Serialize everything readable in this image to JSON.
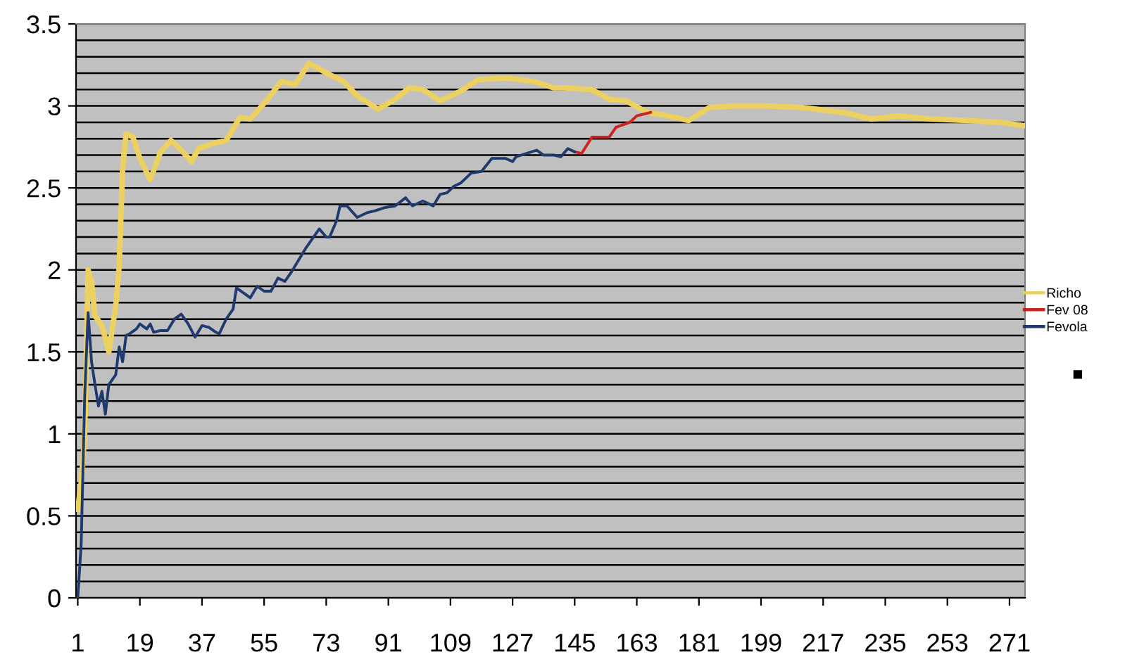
{
  "chart_data": {
    "type": "line",
    "xlim": [
      0.5,
      275.5
    ],
    "xticks": [
      1,
      19,
      37,
      55,
      73,
      91,
      109,
      127,
      145,
      163,
      181,
      199,
      217,
      235,
      253,
      271
    ],
    "ylim": [
      0,
      3.5
    ],
    "yticks": [
      0,
      {
        "value": 0.1,
        "label": null
      },
      {
        "value": 0.2,
        "label": null
      },
      {
        "value": 0.3,
        "label": null
      },
      {
        "value": 0.4,
        "label": null
      },
      0.5,
      {
        "value": 0.6,
        "label": null
      },
      {
        "value": 0.7,
        "label": null
      },
      {
        "value": 0.8,
        "label": null
      },
      {
        "value": 0.9,
        "label": null
      },
      1,
      {
        "value": 1.1,
        "label": null
      },
      {
        "value": 1.2,
        "label": null
      },
      {
        "value": 1.3,
        "label": null
      },
      {
        "value": 1.4,
        "label": null
      },
      1.5,
      {
        "value": 1.6,
        "label": null
      },
      {
        "value": 1.7,
        "label": null
      },
      {
        "value": 1.8,
        "label": null
      },
      {
        "value": 1.9,
        "label": null
      },
      2,
      {
        "value": 2.1,
        "label": null
      },
      {
        "value": 2.2,
        "label": null
      },
      {
        "value": 2.3,
        "label": null
      },
      {
        "value": 2.4,
        "label": null
      },
      2.5,
      {
        "value": 2.6,
        "label": null
      },
      {
        "value": 2.7,
        "label": null
      },
      {
        "value": 2.8,
        "label": null
      },
      {
        "value": 2.9,
        "label": null
      },
      3,
      {
        "value": 3.1,
        "label": null
      },
      {
        "value": 3.2,
        "label": null
      },
      {
        "value": 3.3,
        "label": null
      },
      {
        "value": 3.4,
        "label": null
      },
      3.5
    ],
    "grid": "y",
    "legend": "right",
    "marker": "none",
    "line_style": "solid",
    "series": [
      {
        "name": "Richo",
        "color": "#ecd060",
        "x": [
          1,
          2,
          3,
          4,
          5,
          6,
          8,
          10,
          12,
          13,
          14,
          15,
          17,
          19,
          22,
          25,
          28,
          31,
          34,
          36,
          40,
          44,
          48,
          51,
          56,
          60,
          64,
          68,
          74,
          78,
          82,
          88,
          93,
          97,
          101,
          106,
          112,
          117,
          125,
          133,
          139,
          142,
          150,
          155,
          160,
          166,
          172,
          178,
          184,
          191,
          201,
          211,
          223,
          231,
          239,
          248,
          260,
          268,
          275
        ],
        "values": [
          0.54,
          0.7,
          0.99,
          2.0,
          1.93,
          1.72,
          1.66,
          1.5,
          1.78,
          2.02,
          2.62,
          2.83,
          2.81,
          2.68,
          2.55,
          2.72,
          2.79,
          2.73,
          2.66,
          2.74,
          2.77,
          2.79,
          2.93,
          2.92,
          3.04,
          3.15,
          3.13,
          3.26,
          3.19,
          3.15,
          3.06,
          2.98,
          3.04,
          3.11,
          3.1,
          3.03,
          3.09,
          3.16,
          3.17,
          3.15,
          3.11,
          3.11,
          3.1,
          3.04,
          3.03,
          2.96,
          2.94,
          2.91,
          2.99,
          3.0,
          3.0,
          2.99,
          2.96,
          2.92,
          2.94,
          2.92,
          2.91,
          2.9,
          2.88
        ]
      },
      {
        "name": "Fev 08",
        "color": "#cc2222",
        "x": [
          145,
          147,
          150,
          153,
          155,
          157,
          161,
          163,
          167
        ],
        "values": [
          2.72,
          2.71,
          2.81,
          2.81,
          2.81,
          2.87,
          2.9,
          2.94,
          2.96
        ]
      },
      {
        "name": "Fevola",
        "color": "#1f3a6e",
        "x": [
          1,
          2,
          3,
          4,
          5,
          6,
          7,
          8,
          9,
          10,
          11,
          12,
          13,
          14,
          15,
          16,
          18,
          19,
          21,
          22,
          23,
          25,
          27,
          29,
          31,
          33,
          35,
          37,
          39,
          41,
          42,
          44,
          46,
          47,
          51,
          53,
          55,
          57,
          59,
          61,
          63,
          65,
          67,
          69,
          71,
          73,
          74,
          76,
          77,
          79,
          82,
          85,
          87,
          90,
          93,
          96,
          98,
          101,
          104,
          106,
          108,
          110,
          112,
          115,
          118,
          121,
          125,
          127,
          128,
          134,
          136,
          139,
          141,
          143,
          145
        ],
        "values": [
          0,
          0.33,
          1.22,
          1.74,
          1.44,
          1.3,
          1.17,
          1.26,
          1.12,
          1.3,
          1.33,
          1.36,
          1.53,
          1.44,
          1.6,
          1.61,
          1.64,
          1.67,
          1.64,
          1.67,
          1.62,
          1.63,
          1.63,
          1.7,
          1.73,
          1.67,
          1.59,
          1.66,
          1.65,
          1.62,
          1.61,
          1.7,
          1.76,
          1.89,
          1.83,
          1.9,
          1.87,
          1.87,
          1.95,
          1.93,
          1.99,
          2.06,
          2.13,
          2.19,
          2.25,
          2.2,
          2.2,
          2.3,
          2.39,
          2.39,
          2.32,
          2.35,
          2.36,
          2.38,
          2.39,
          2.44,
          2.39,
          2.42,
          2.39,
          2.46,
          2.47,
          2.51,
          2.53,
          2.59,
          2.6,
          2.68,
          2.68,
          2.66,
          2.69,
          2.73,
          2.7,
          2.7,
          2.69,
          2.74,
          2.72
        ]
      }
    ]
  }
}
